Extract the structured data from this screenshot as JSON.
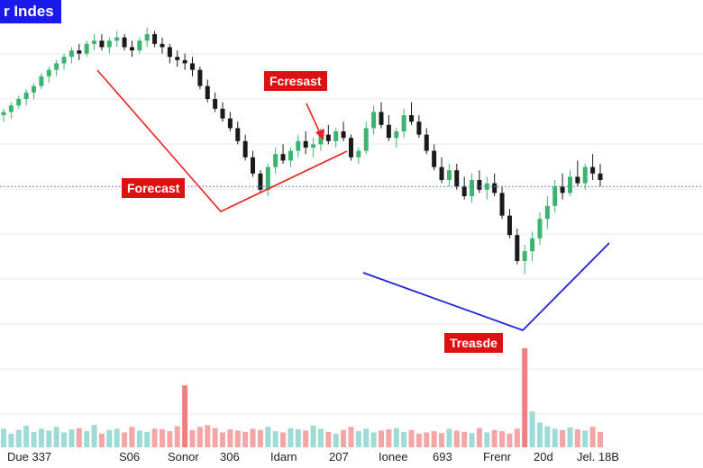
{
  "title": "r Indes",
  "colors": {
    "title_bg": "#1a1aee",
    "up": "#3cb371",
    "down": "#1a1a1a",
    "vol_up": "#9edbd6",
    "vol_down": "#f4a6a6",
    "vol_spike": "#f08080",
    "callout_bg": "#dd1111",
    "red_line": "#ee2222",
    "blue_line": "#2222dd",
    "hline": "#6a7fd6",
    "grid": "#e9e9e9"
  },
  "annotations": {
    "forecast_a": "Forecast",
    "forecast_b": "Fcresast",
    "trend": "Treasde"
  },
  "chart_data": {
    "type": "candlestick",
    "title": "r Indes",
    "x_tick_labels": [
      "Due 337",
      "S06",
      "Sonor",
      "306",
      "Idarn",
      "207",
      "Ionee",
      "693",
      "Frenr",
      "20d",
      "Jel. 18B"
    ],
    "ylim": [
      0,
      100
    ],
    "reference_level": 48,
    "candles": [
      [
        70,
        72,
        68,
        71
      ],
      [
        71,
        74,
        69,
        73
      ],
      [
        73,
        76,
        72,
        75
      ],
      [
        75,
        78,
        73,
        77
      ],
      [
        77,
        80,
        75,
        79
      ],
      [
        79,
        83,
        78,
        82
      ],
      [
        82,
        85,
        80,
        84
      ],
      [
        84,
        87,
        82,
        86
      ],
      [
        86,
        89,
        84,
        88
      ],
      [
        88,
        91,
        86,
        90
      ],
      [
        90,
        92,
        87,
        89
      ],
      [
        89,
        93,
        88,
        92
      ],
      [
        92,
        95,
        90,
        93
      ],
      [
        93,
        95,
        90,
        91
      ],
      [
        91,
        94,
        89,
        93
      ],
      [
        93,
        96,
        91,
        94
      ],
      [
        94,
        95,
        90,
        91
      ],
      [
        91,
        93,
        88,
        90
      ],
      [
        90,
        94,
        89,
        93
      ],
      [
        93,
        97,
        91,
        95
      ],
      [
        95,
        96,
        91,
        92
      ],
      [
        92,
        94,
        89,
        91
      ],
      [
        91,
        92,
        86,
        88
      ],
      [
        88,
        90,
        85,
        87
      ],
      [
        87,
        89,
        84,
        86
      ],
      [
        86,
        88,
        82,
        84
      ],
      [
        84,
        85,
        78,
        79
      ],
      [
        79,
        81,
        74,
        75
      ],
      [
        75,
        77,
        71,
        72
      ],
      [
        72,
        74,
        68,
        69
      ],
      [
        69,
        71,
        65,
        66
      ],
      [
        66,
        68,
        61,
        62
      ],
      [
        62,
        64,
        56,
        57
      ],
      [
        57,
        59,
        51,
        52
      ],
      [
        52,
        53,
        46,
        47
      ],
      [
        47,
        55,
        45,
        54
      ],
      [
        54,
        60,
        52,
        58
      ],
      [
        58,
        61,
        55,
        56
      ],
      [
        56,
        60,
        54,
        59
      ],
      [
        59,
        64,
        57,
        62
      ],
      [
        62,
        65,
        58,
        60
      ],
      [
        60,
        63,
        57,
        61
      ],
      [
        61,
        66,
        59,
        64
      ],
      [
        64,
        67,
        61,
        62
      ],
      [
        62,
        66,
        60,
        65
      ],
      [
        65,
        68,
        62,
        63
      ],
      [
        63,
        64,
        56,
        57
      ],
      [
        57,
        60,
        55,
        59
      ],
      [
        59,
        68,
        58,
        66
      ],
      [
        66,
        73,
        64,
        71
      ],
      [
        71,
        74,
        66,
        67
      ],
      [
        67,
        70,
        62,
        63
      ],
      [
        63,
        66,
        60,
        65
      ],
      [
        65,
        72,
        63,
        70
      ],
      [
        70,
        74,
        67,
        68
      ],
      [
        68,
        70,
        63,
        64
      ],
      [
        64,
        66,
        58,
        59
      ],
      [
        59,
        61,
        53,
        54
      ],
      [
        54,
        57,
        49,
        50
      ],
      [
        50,
        55,
        48,
        53
      ],
      [
        53,
        55,
        47,
        48
      ],
      [
        48,
        51,
        44,
        45
      ],
      [
        45,
        52,
        43,
        50
      ],
      [
        50,
        53,
        46,
        47
      ],
      [
        47,
        51,
        44,
        49
      ],
      [
        49,
        52,
        45,
        46
      ],
      [
        46,
        48,
        38,
        39
      ],
      [
        39,
        41,
        32,
        33
      ],
      [
        33,
        35,
        24,
        25
      ],
      [
        25,
        30,
        21,
        28
      ],
      [
        28,
        34,
        25,
        32
      ],
      [
        32,
        40,
        30,
        38
      ],
      [
        38,
        45,
        35,
        42
      ],
      [
        42,
        50,
        40,
        48
      ],
      [
        48,
        52,
        44,
        46
      ],
      [
        46,
        53,
        45,
        51
      ],
      [
        51,
        56,
        48,
        49
      ],
      [
        49,
        55,
        47,
        54
      ],
      [
        54,
        58,
        50,
        52
      ],
      [
        52,
        55,
        48,
        50
      ]
    ],
    "volumes": [
      30,
      22,
      28,
      35,
      25,
      30,
      27,
      33,
      24,
      29,
      31,
      26,
      36,
      22,
      28,
      30,
      24,
      33,
      27,
      25,
      30,
      29,
      26,
      34,
      100,
      28,
      33,
      36,
      31,
      24,
      29,
      27,
      25,
      30,
      28,
      33,
      26,
      24,
      31,
      29,
      27,
      35,
      30,
      25,
      22,
      28,
      33,
      26,
      30,
      24,
      27,
      29,
      31,
      25,
      28,
      22,
      24,
      26,
      23,
      30,
      27,
      25,
      23,
      31,
      24,
      28,
      26,
      22,
      30,
      160,
      58,
      40,
      34,
      30,
      28,
      32,
      29,
      27,
      33,
      25
    ]
  }
}
